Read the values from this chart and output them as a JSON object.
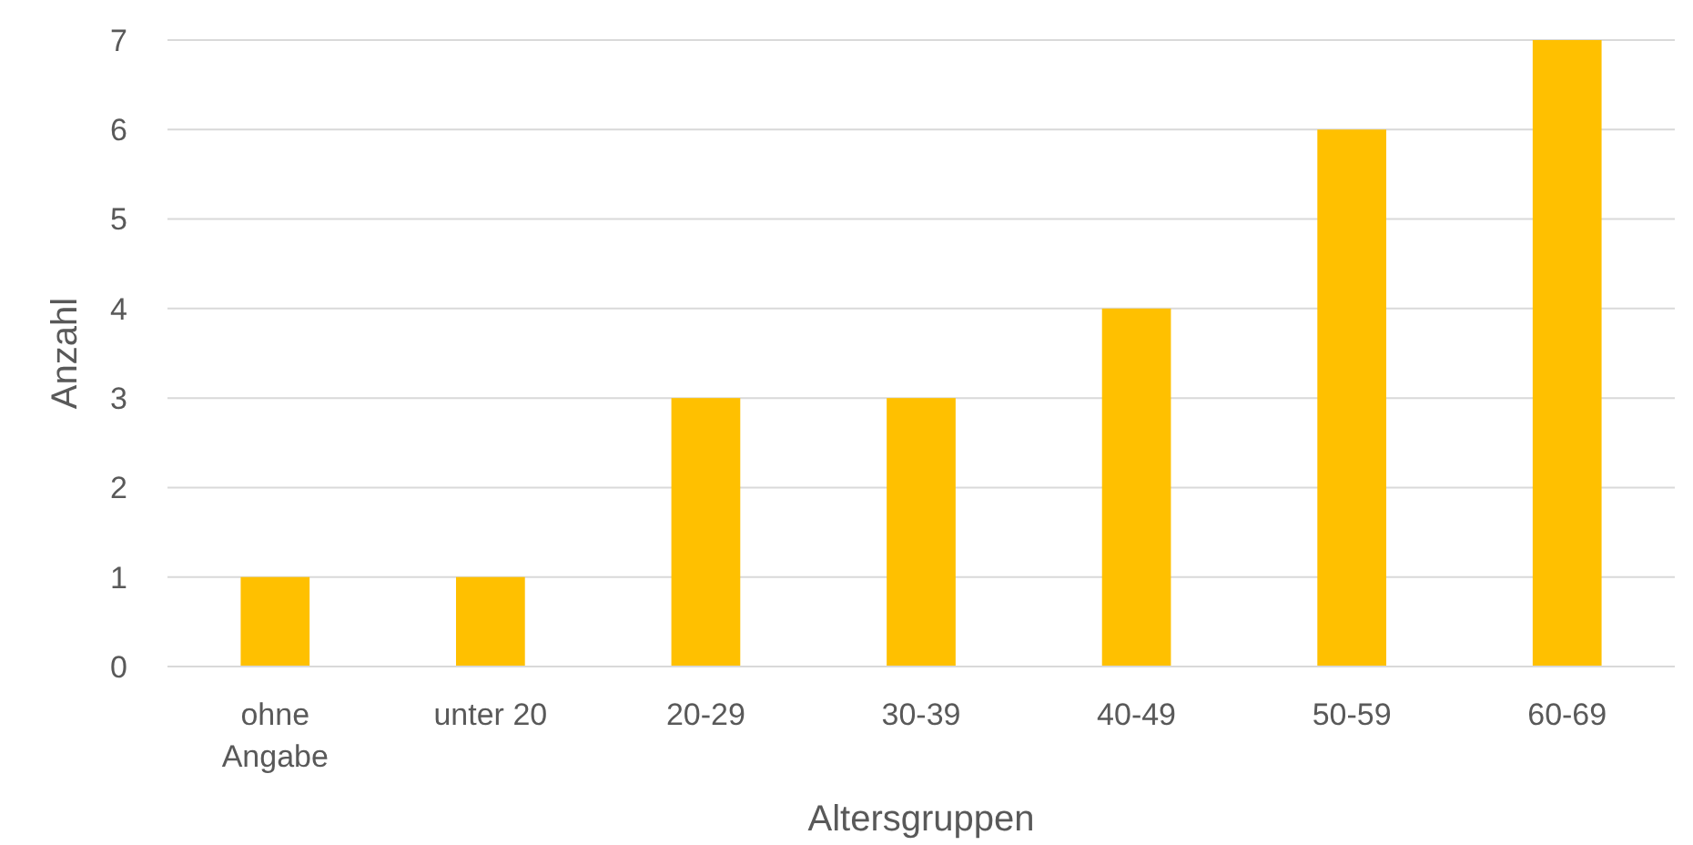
{
  "chart_data": {
    "type": "bar",
    "xlabel": "Altersgruppen",
    "ylabel": "Anzahl",
    "categories": [
      "ohne Angabe",
      "unter 20",
      "20-29",
      "30-39",
      "40-49",
      "50-59",
      "60-69"
    ],
    "values": [
      1,
      1,
      3,
      3,
      4,
      6,
      7
    ],
    "color": "#ffc000",
    "ylim": [
      0,
      7
    ],
    "yticks": [
      0,
      1,
      2,
      3,
      4,
      5,
      6,
      7
    ],
    "grid": "y"
  }
}
